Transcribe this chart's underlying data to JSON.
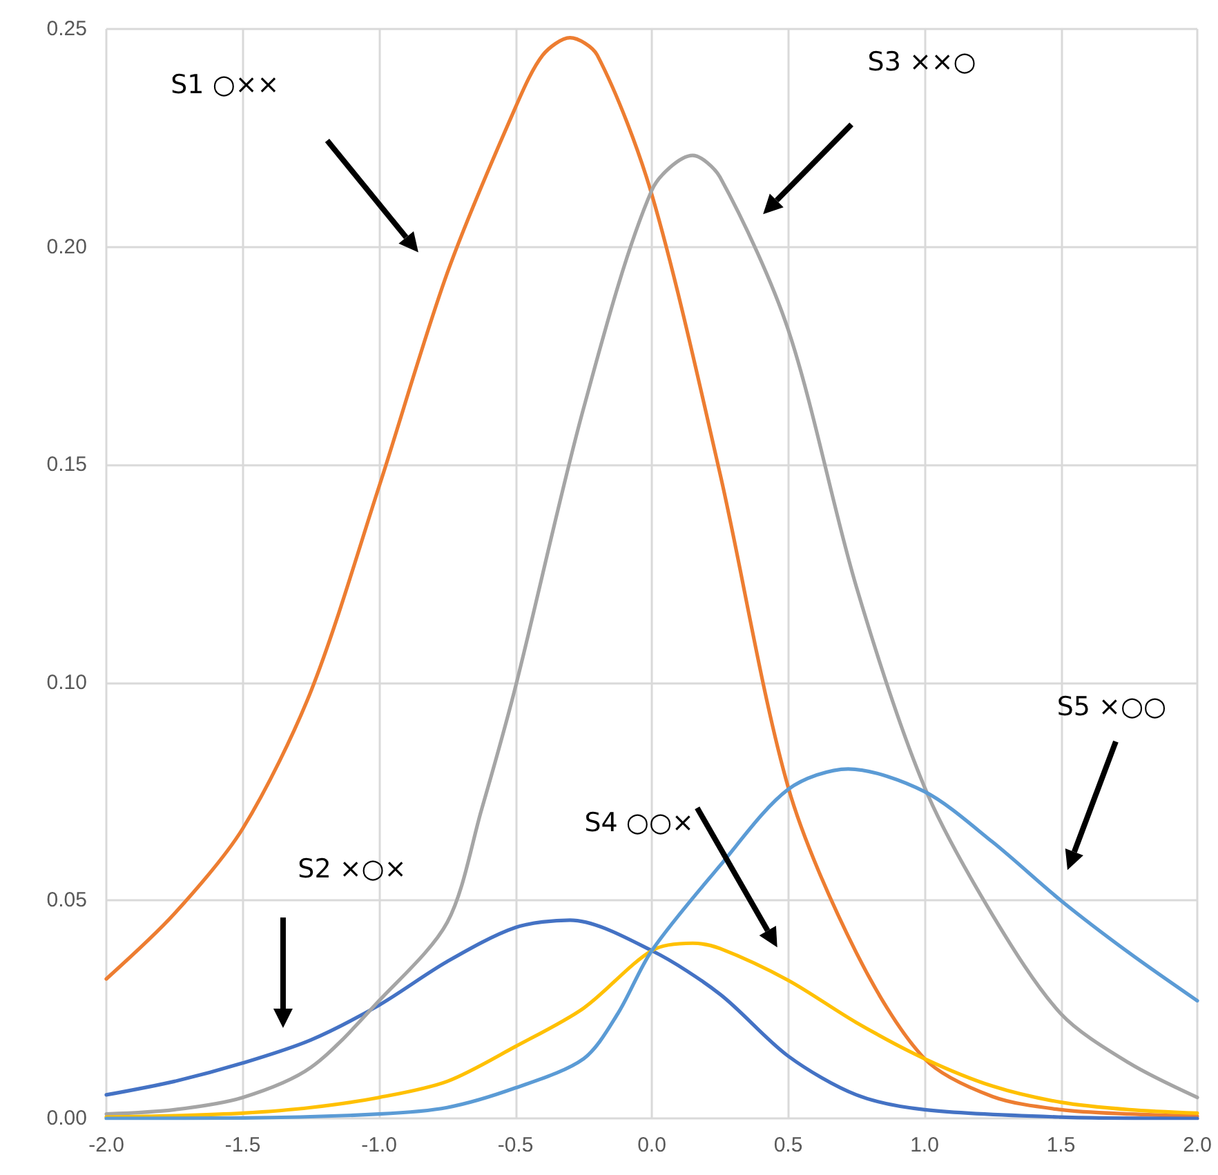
{
  "chart_data": {
    "type": "line",
    "xlim": [
      -2,
      2
    ],
    "ylim": [
      0,
      0.25
    ],
    "xticks": [
      {
        "value": -2,
        "label": "-2.0"
      },
      {
        "value": -1.5,
        "label": "-1.5"
      },
      {
        "value": -1,
        "label": "-1.0"
      },
      {
        "value": -0.5,
        "label": "-0.5"
      },
      {
        "value": 0,
        "label": "0.0"
      },
      {
        "value": 0.5,
        "label": "0.5"
      },
      {
        "value": 1,
        "label": "1.0"
      },
      {
        "value": 1.5,
        "label": "1.5"
      },
      {
        "value": 2,
        "label": "2.0"
      }
    ],
    "yticks": [
      {
        "value": 0,
        "label": "0.00"
      },
      {
        "value": 0.05,
        "label": "0.05"
      },
      {
        "value": 0.1,
        "label": "0.10"
      },
      {
        "value": 0.15,
        "label": "0.15"
      },
      {
        "value": 0.2,
        "label": "0.20"
      },
      {
        "value": 0.25,
        "label": "0.25"
      }
    ],
    "annotations": [
      "S1 ○××",
      "S2 ×○×",
      "S3 ××○",
      "S4 ○○×",
      "S5 ×○○"
    ],
    "grid": true,
    "marker": "none",
    "line_style": "solid",
    "series": [
      {
        "color": "#ed7d31",
        "x": [
          -2,
          -1.75,
          -1.5,
          -1.25,
          -1,
          -0.75,
          -0.5,
          -0.4,
          -0.3,
          -0.2,
          0,
          0.25,
          0.5,
          0.75,
          1,
          1.25,
          1.5,
          1.75,
          2
        ],
        "values": [
          0.032,
          0.047,
          0.0665,
          0.098,
          0.145,
          0.194,
          0.232,
          0.244,
          0.248,
          0.244,
          0.212,
          0.148,
          0.076,
          0.038,
          0.0137,
          0.005,
          0.002,
          0.001,
          0.0005
        ]
      },
      {
        "color": "#4472c4",
        "x": [
          -2,
          -1.75,
          -1.5,
          -1.25,
          -1,
          -0.75,
          -0.5,
          -0.3,
          0,
          0.25,
          0.5,
          0.75,
          1,
          1.5,
          2
        ],
        "values": [
          0.0054,
          0.0085,
          0.0127,
          0.018,
          0.026,
          0.036,
          0.0438,
          0.0455,
          0.0385,
          0.0285,
          0.0143,
          0.0054,
          0.002,
          0.0003,
          0
        ]
      },
      {
        "color": "#a5a5a5",
        "x": [
          -2,
          -1.75,
          -1.5,
          -1.25,
          -1,
          -0.75,
          -0.625,
          -0.5,
          -0.25,
          0,
          0.15,
          0.25,
          0.5,
          0.75,
          1,
          1.25,
          1.5,
          1.75,
          2
        ],
        "values": [
          0.001,
          0.002,
          0.0048,
          0.0117,
          0.027,
          0.045,
          0.0707,
          0.099,
          0.163,
          0.213,
          0.221,
          0.216,
          0.181,
          0.122,
          0.076,
          0.0466,
          0.024,
          0.0127,
          0.0048
        ]
      },
      {
        "color": "#ffc000",
        "x": [
          -2,
          -1.75,
          -1.5,
          -1.25,
          -1,
          -0.75,
          -0.5,
          -0.25,
          0,
          0.15,
          0.25,
          0.5,
          0.75,
          1,
          1.25,
          1.5,
          1.75,
          2
        ],
        "values": [
          0.0003,
          0.0006,
          0.0012,
          0.0025,
          0.0048,
          0.0085,
          0.0165,
          0.0253,
          0.0385,
          0.0402,
          0.039,
          0.0317,
          0.022,
          0.0137,
          0.0074,
          0.0037,
          0.002,
          0.0012
        ]
      },
      {
        "color": "#5b9bd5",
        "x": [
          -2,
          -1.5,
          -1,
          -0.75,
          -0.5,
          -0.25,
          -0.125,
          0,
          0.25,
          0.5,
          0.72,
          1,
          1.25,
          1.5,
          1.75,
          2
        ],
        "values": [
          0,
          0.0001,
          0.001,
          0.0025,
          0.007,
          0.0137,
          0.024,
          0.0385,
          0.058,
          0.0755,
          0.0802,
          0.075,
          0.0634,
          0.05,
          0.038,
          0.027
        ]
      }
    ]
  }
}
